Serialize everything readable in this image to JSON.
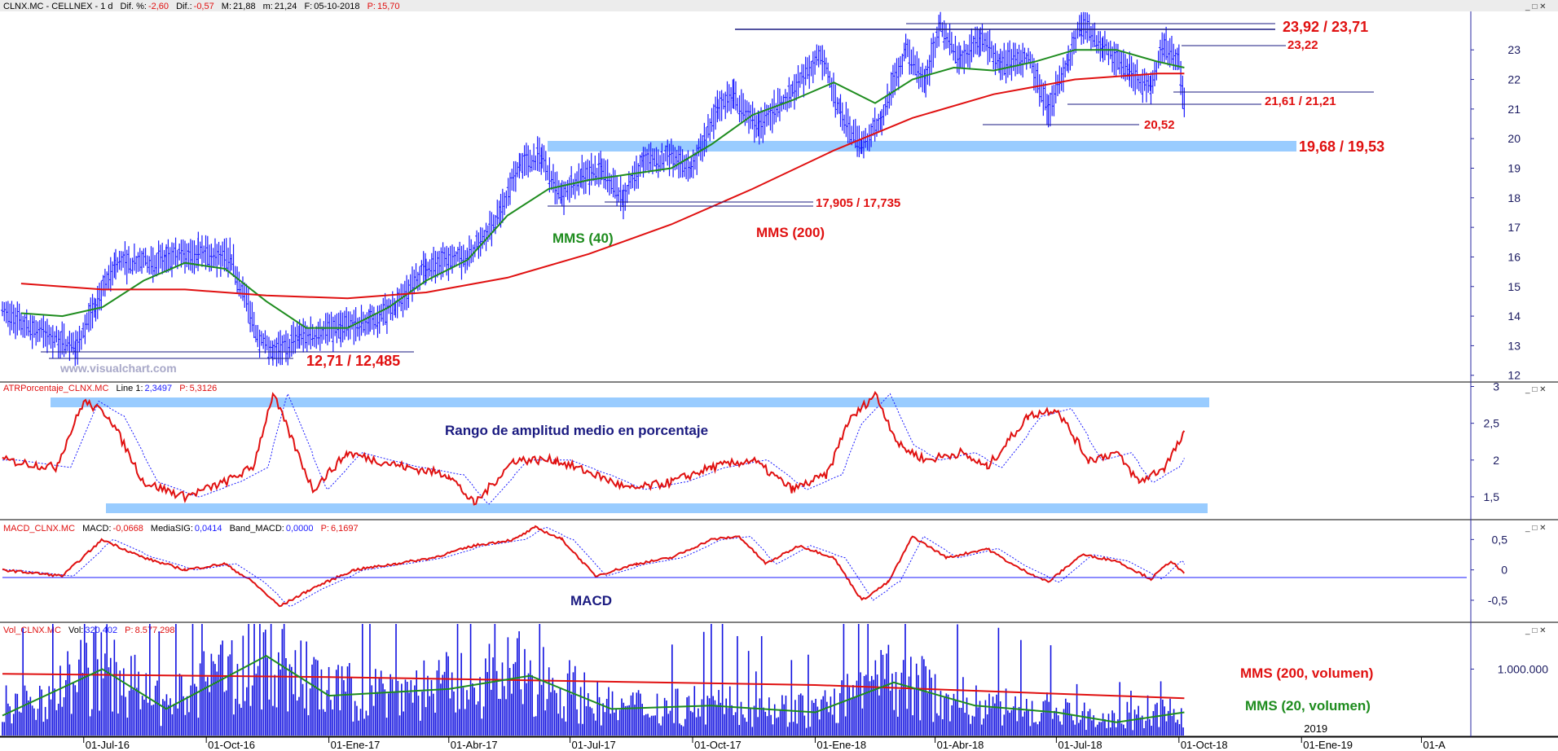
{
  "header": {
    "symbol": "CLNX.MC - CELLNEX - 1 d",
    "dif_pct_label": "Dif. %:",
    "dif_pct": "-2,60",
    "dif_label": "Dif.:",
    "dif": "-0,57",
    "max_label": "M:",
    "max": "21,88",
    "min_label": "m:",
    "min": "21,24",
    "date_label": "F:",
    "date": "05-10-2018",
    "p_label": "P:",
    "p": "15,70"
  },
  "watermark": "www.visualchart.com",
  "panes": {
    "atr": {
      "title": "ATRPorcentaje_CLNX.MC",
      "line_label": "Line 1:",
      "line": "2,3497",
      "p_label": "P:",
      "p": "5,3126"
    },
    "macd": {
      "title": "MACD_CLNX.MC",
      "macd_label": "MACD:",
      "macd": "-0,0668",
      "sig_label": "MediaSIG:",
      "sig": "0,0414",
      "band_label": "Band_MACD:",
      "band": "0,0000",
      "p_label": "P:",
      "p": "6,1697"
    },
    "vol": {
      "title": "Vol_CLNX.MC",
      "vol_label": "Vol:",
      "vol": "320.402",
      "p_label": "P:",
      "p": "8.577.298"
    }
  },
  "annotations": {
    "resist_top": "23,92 / 23,71",
    "r_2322": "23,22",
    "s_2161": "21,61 / 21,21",
    "s_2052": "20,52",
    "zone_1968": "19,68 / 19,53",
    "s_17905": "17,905 / 17,735",
    "s_1271": "12,71 / 12,485",
    "mms40": "MMS (40)",
    "mms200": "MMS (200)",
    "atr_title": "Rango de amplitud medio en porcentaje",
    "macd_title": "MACD",
    "vol_mms200": "MMS (200, volumen)",
    "vol_mms20": "MMS (20, volumen)",
    "year_2019": "2019"
  },
  "colors": {
    "price": "#1a1aff",
    "mms40": "#1e8c1e",
    "mms200": "#e01010",
    "annot_red": "#e01010",
    "annot_navy": "#1a1a80",
    "zone": "#99ccff"
  },
  "chart_data": [
    {
      "type": "line",
      "series": [
        {
          "name": "MMS (40)",
          "x": [
            "2016-05-15",
            "2016-06-15",
            "2016-07-15",
            "2016-08-15",
            "2016-09-15",
            "2016-10-15",
            "2016-11-15",
            "2016-12-15",
            "2017-01-15",
            "2017-02-15",
            "2017-03-15",
            "2017-04-15",
            "2017-05-15",
            "2017-06-15",
            "2017-07-15",
            "2017-08-15",
            "2017-09-15",
            "2017-10-15",
            "2017-11-15",
            "2017-12-15",
            "2018-01-15",
            "2018-02-15",
            "2018-03-15",
            "2018-04-15",
            "2018-05-15",
            "2018-06-15",
            "2018-07-15",
            "2018-08-15",
            "2018-09-15",
            "2018-10-05"
          ],
          "values": [
            14.1,
            14.0,
            14.3,
            15.2,
            15.8,
            15.6,
            14.5,
            13.6,
            13.6,
            14.3,
            15.2,
            15.9,
            17.4,
            18.3,
            18.6,
            18.8,
            19.0,
            19.8,
            20.8,
            21.3,
            21.9,
            21.2,
            22.0,
            22.4,
            22.3,
            22.6,
            23.0,
            23.0,
            22.6,
            22.4
          ]
        },
        {
          "name": "MMS (200)",
          "x": [
            "2016-05-15",
            "2016-07-15",
            "2016-09-15",
            "2016-11-15",
            "2017-01-15",
            "2017-03-15",
            "2017-05-15",
            "2017-07-15",
            "2017-09-15",
            "2017-11-15",
            "2018-01-15",
            "2018-03-15",
            "2018-05-15",
            "2018-07-15",
            "2018-09-15",
            "2018-10-05"
          ],
          "values": [
            15.1,
            14.9,
            14.9,
            14.7,
            14.6,
            14.8,
            15.3,
            16.1,
            17.1,
            18.3,
            19.6,
            20.7,
            21.5,
            22.0,
            22.2,
            22.2
          ]
        }
      ],
      "y_ticks": [
        "12",
        "13",
        "14",
        "15",
        "16",
        "17",
        "18",
        "19",
        "20",
        "21",
        "22",
        "23"
      ],
      "x_ticks": [
        "01-Jul-16",
        "01-Oct-16",
        "01-Ene-17",
        "01-Abr-17",
        "01-Jul-17",
        "01-Oct-17",
        "01-Ene-18",
        "01-Abr-18",
        "01-Jul-18",
        "01-Oct-18",
        "01-Ene-19",
        "01-A"
      ],
      "ylim": [
        11.8,
        24.3
      ],
      "price_path": [
        [
          "2016-05-01",
          14.1
        ],
        [
          "2016-06-25",
          12.9
        ],
        [
          "2016-07-10",
          14.3
        ],
        [
          "2016-07-25",
          15.8
        ],
        [
          "2016-09-01",
          15.9
        ],
        [
          "2016-09-25",
          16.2
        ],
        [
          "2016-10-20",
          15.9
        ],
        [
          "2016-11-10",
          13.2
        ],
        [
          "2016-11-20",
          12.7
        ],
        [
          "2016-12-10",
          13.3
        ],
        [
          "2017-01-10",
          13.6
        ],
        [
          "2017-02-01",
          13.8
        ],
        [
          "2017-02-20",
          14.3
        ],
        [
          "2017-03-15",
          15.7
        ],
        [
          "2017-04-15",
          16.0
        ],
        [
          "2017-05-10",
          17.5
        ],
        [
          "2017-05-25",
          19.2
        ],
        [
          "2017-06-10",
          19.4
        ],
        [
          "2017-06-25",
          18.0
        ],
        [
          "2017-07-10",
          18.8
        ],
        [
          "2017-07-25",
          18.9
        ],
        [
          "2017-08-10",
          18.0
        ],
        [
          "2017-08-25",
          19.2
        ],
        [
          "2017-09-15",
          19.4
        ],
        [
          "2017-09-30",
          19.0
        ],
        [
          "2017-10-20",
          21.0
        ],
        [
          "2017-11-01",
          21.4
        ],
        [
          "2017-11-20",
          20.4
        ],
        [
          "2017-12-15",
          21.6
        ],
        [
          "2018-01-05",
          22.9
        ],
        [
          "2018-01-20",
          20.8
        ],
        [
          "2018-02-05",
          19.8
        ],
        [
          "2018-02-20",
          20.7
        ],
        [
          "2018-03-10",
          23.0
        ],
        [
          "2018-03-25",
          22.0
        ],
        [
          "2018-04-05",
          23.8
        ],
        [
          "2018-04-20",
          22.6
        ],
        [
          "2018-05-05",
          23.4
        ],
        [
          "2018-05-20",
          22.5
        ],
        [
          "2018-06-10",
          22.8
        ],
        [
          "2018-06-25",
          21.0
        ],
        [
          "2018-07-10",
          22.6
        ],
        [
          "2018-07-20",
          23.9
        ],
        [
          "2018-08-05",
          23.1
        ],
        [
          "2018-08-25",
          22.2
        ],
        [
          "2018-09-10",
          21.7
        ],
        [
          "2018-09-20",
          23.2
        ],
        [
          "2018-10-01",
          22.6
        ],
        [
          "2018-10-05",
          21.24
        ]
      ]
    },
    {
      "type": "line",
      "series": [
        {
          "name": "ATRPorcentaje_CLNX.MC",
          "x": [
            "2016-05-01",
            "2016-06-10",
            "2016-07-01",
            "2016-07-20",
            "2016-08-15",
            "2016-09-15",
            "2016-10-15",
            "2016-11-05",
            "2016-11-20",
            "2016-12-20",
            "2017-01-15",
            "2017-02-05",
            "2017-03-01",
            "2017-04-01",
            "2017-04-20",
            "2017-05-20",
            "2017-06-20",
            "2017-07-20",
            "2017-08-15",
            "2017-09-15",
            "2017-10-15",
            "2017-11-15",
            "2017-12-15",
            "2018-01-10",
            "2018-01-25",
            "2018-02-15",
            "2018-03-05",
            "2018-03-25",
            "2018-04-20",
            "2018-05-10",
            "2018-06-10",
            "2018-07-01",
            "2018-07-25",
            "2018-08-15",
            "2018-09-01",
            "2018-09-20",
            "2018-10-05"
          ],
          "values": [
            2.0,
            1.9,
            2.8,
            2.6,
            1.7,
            1.5,
            1.7,
            1.9,
            2.9,
            1.6,
            2.1,
            2.0,
            1.9,
            1.8,
            1.4,
            2.0,
            2.0,
            1.8,
            1.6,
            1.7,
            1.9,
            2.0,
            1.6,
            1.8,
            2.5,
            2.9,
            2.2,
            2.0,
            2.1,
            1.9,
            2.6,
            2.7,
            2.0,
            2.1,
            1.7,
            1.9,
            2.35
          ]
        }
      ],
      "y_ticks": [
        "1,5",
        "2",
        "2,5",
        "3"
      ],
      "ylim": [
        1.2,
        3.05
      ]
    },
    {
      "type": "line",
      "series": [
        {
          "name": "MACD",
          "x": [
            "2016-05-01",
            "2016-06-15",
            "2016-07-15",
            "2016-08-15",
            "2016-09-15",
            "2016-10-15",
            "2016-11-05",
            "2016-11-25",
            "2016-12-20",
            "2017-01-20",
            "2017-02-20",
            "2017-03-20",
            "2017-04-20",
            "2017-05-20",
            "2017-06-05",
            "2017-06-25",
            "2017-07-20",
            "2017-08-20",
            "2017-09-15",
            "2017-10-15",
            "2017-11-05",
            "2017-11-25",
            "2017-12-20",
            "2018-01-15",
            "2018-02-05",
            "2018-02-25",
            "2018-03-15",
            "2018-04-10",
            "2018-05-10",
            "2018-06-01",
            "2018-06-25",
            "2018-07-20",
            "2018-08-15",
            "2018-09-10",
            "2018-09-25",
            "2018-10-05"
          ],
          "values": [
            0.0,
            -0.1,
            0.5,
            0.2,
            0.0,
            0.1,
            -0.2,
            -0.6,
            -0.3,
            0.0,
            0.1,
            0.2,
            0.4,
            0.5,
            0.7,
            0.5,
            -0.1,
            0.1,
            0.2,
            0.5,
            0.55,
            0.1,
            0.4,
            0.2,
            -0.5,
            -0.2,
            0.55,
            0.2,
            0.35,
            0.05,
            -0.2,
            0.25,
            0.15,
            -0.15,
            0.15,
            -0.07
          ]
        }
      ],
      "y_ticks": [
        "-0,5",
        "0",
        "0,5"
      ],
      "ylim": [
        -0.85,
        0.8
      ]
    },
    {
      "type": "bar",
      "title": "Vol_CLNX.MC",
      "series": [
        {
          "name": "MMS (200, volumen)",
          "x": [
            "2016-05-01",
            "2017-01-01",
            "2018-01-01",
            "2018-10-05"
          ],
          "values": [
            930000,
            880000,
            760000,
            560000
          ]
        },
        {
          "name": "MMS (20, volumen)",
          "x": [
            "2016-05-01",
            "2016-07-15",
            "2016-09-01",
            "2016-11-15",
            "2017-01-01",
            "2017-04-01",
            "2017-06-01",
            "2017-08-01",
            "2017-10-15",
            "2018-01-01",
            "2018-03-01",
            "2018-05-01",
            "2018-07-01",
            "2018-08-15",
            "2018-10-05"
          ],
          "values": [
            300000,
            1000000,
            400000,
            1200000,
            600000,
            700000,
            900000,
            400000,
            450000,
            350000,
            800000,
            450000,
            350000,
            200000,
            350000
          ]
        }
      ],
      "y_ticks": [
        "1.000.000"
      ],
      "ylim": [
        0,
        1680000
      ]
    }
  ]
}
